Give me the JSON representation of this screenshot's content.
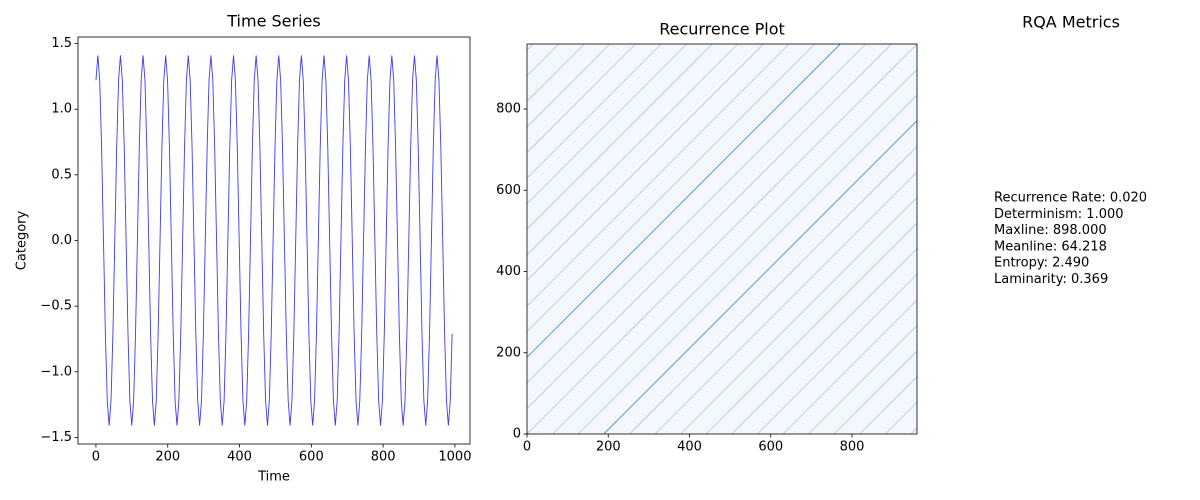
{
  "chart_data": [
    {
      "type": "line",
      "title": "Time Series",
      "x_label": "Time",
      "y_label": "Category",
      "color": "#3a3aff",
      "x": [
        0,
        5.25,
        10.5,
        15.75,
        21,
        26.25,
        31.5,
        36.75,
        42,
        47.25,
        52.5,
        57.75,
        63,
        68.25,
        73.5,
        78.75,
        84,
        89.25,
        94.5,
        99.75,
        105,
        110.25,
        115.5,
        120.75,
        126,
        131.25,
        136.5,
        141.75,
        147,
        152.25,
        157.5,
        162.75,
        168,
        173.25,
        178.5,
        183.75,
        189,
        194.25,
        199.5,
        204.75,
        210,
        215.25,
        220.5,
        225.75,
        231,
        236.25,
        241.5,
        246.75,
        252,
        257.25,
        262.5,
        267.75,
        273,
        278.25,
        283.5,
        288.75,
        294,
        299.25,
        304.5,
        309.75,
        315,
        320.25,
        325.5,
        330.75,
        336,
        341.25,
        346.5,
        351.75,
        357,
        362.25,
        367.5,
        372.75,
        378,
        383.25,
        388.5,
        393.75,
        399,
        404.25,
        409.5,
        414.75,
        420,
        425.25,
        430.5,
        435.75,
        441,
        446.25,
        451.5,
        456.75,
        462,
        467.25,
        472.5,
        477.75,
        483,
        488.25,
        493.5,
        498.75,
        504,
        509.25,
        514.5,
        519.75,
        525,
        530.25,
        535.5,
        540.75,
        546,
        551.25,
        556.5,
        561.75,
        567,
        572.25,
        577.5,
        582.75,
        588,
        593.25,
        598.5,
        603.75,
        609,
        614.25,
        619.5,
        624.75,
        630,
        635.25,
        640.5,
        645.75,
        651,
        656.25,
        661.5,
        666.75,
        672,
        677.25,
        682.5,
        687.75,
        693,
        698.25,
        703.5,
        708.75,
        714,
        719.25,
        724.5,
        729.75,
        735,
        740.25,
        745.5,
        750.75,
        756,
        761.25,
        766.5,
        771.75,
        777,
        782.25,
        787.5,
        792.75,
        798,
        803.25,
        808.5,
        813.75,
        819,
        824.25,
        829.5,
        834.75,
        840,
        845.25,
        850.5,
        855.75,
        861,
        866.25,
        871.5,
        876.75,
        882,
        887.25,
        892.5,
        897.75,
        903,
        908.25,
        913.5,
        918.75,
        924,
        929.25,
        934.5,
        939.75,
        945,
        950.25,
        955.5,
        960.75,
        966,
        971.25,
        976.5,
        981.75,
        987,
        992.25
      ],
      "values": [
        1.22,
        1.41,
        1.22,
        0.71,
        0,
        -0.71,
        -1.22,
        -1.41,
        -1.22,
        -0.71,
        0,
        0.71,
        1.22,
        1.41,
        1.22,
        0.71,
        0,
        -0.71,
        -1.22,
        -1.41,
        -1.22,
        -0.71,
        0,
        0.71,
        1.22,
        1.41,
        1.22,
        0.71,
        0,
        -0.71,
        -1.22,
        -1.41,
        -1.22,
        -0.71,
        0,
        0.71,
        1.22,
        1.41,
        1.22,
        0.71,
        0,
        -0.71,
        -1.22,
        -1.41,
        -1.22,
        -0.71,
        0,
        0.71,
        1.22,
        1.41,
        1.22,
        0.71,
        0,
        -0.71,
        -1.22,
        -1.41,
        -1.22,
        -0.71,
        0,
        0.71,
        1.22,
        1.41,
        1.22,
        0.71,
        0,
        -0.71,
        -1.22,
        -1.41,
        -1.22,
        -0.71,
        0,
        0.71,
        1.22,
        1.41,
        1.22,
        0.71,
        0,
        -0.71,
        -1.22,
        -1.41,
        -1.22,
        -0.71,
        0,
        0.71,
        1.22,
        1.41,
        1.22,
        0.71,
        0,
        -0.71,
        -1.22,
        -1.41,
        -1.22,
        -0.71,
        0,
        0.71,
        1.22,
        1.41,
        1.22,
        0.71,
        0,
        -0.71,
        -1.22,
        -1.41,
        -1.22,
        -0.71,
        0,
        0.71,
        1.22,
        1.41,
        1.22,
        0.71,
        0,
        -0.71,
        -1.22,
        -1.41,
        -1.22,
        -0.71,
        0,
        0.71,
        1.22,
        1.41,
        1.22,
        0.71,
        0,
        -0.71,
        -1.22,
        -1.41,
        -1.22,
        -0.71,
        0,
        0.71,
        1.22,
        1.41,
        1.22,
        0.71,
        0,
        -0.71,
        -1.22,
        -1.41,
        -1.22,
        -0.71,
        0,
        0.71,
        1.22,
        1.41,
        1.22,
        0.71,
        0,
        -0.71,
        -1.22,
        -1.41,
        -1.22,
        -0.71,
        0,
        0.71,
        1.22,
        1.41,
        1.22,
        0.71,
        0,
        -0.71,
        -1.22,
        -1.41,
        -1.22,
        -0.71,
        0,
        0.71,
        1.22,
        1.41,
        1.22,
        0.71,
        0,
        -0.71,
        -1.22,
        -1.41,
        -1.22,
        -0.71,
        0,
        0.71,
        1.22,
        1.41,
        1.22,
        0.71,
        0,
        -0.71,
        -1.22,
        -1.41,
        -1.22,
        -0.71
      ],
      "xlim": [
        -50,
        1042
      ],
      "xticks": [
        0,
        200,
        400,
        600,
        800,
        1000
      ],
      "ylim": [
        -1.55,
        1.55
      ],
      "yticks": [
        {
          "value": -1.5,
          "label": "−1.5"
        },
        {
          "value": -1.0,
          "label": "−1.0"
        },
        {
          "value": -0.5,
          "label": "−0.5"
        },
        {
          "value": 0,
          "label": "0.0"
        },
        0.5,
        {
          "value": 1.0,
          "label": "1.0"
        },
        1.5
      ]
    },
    {
      "type": "recurrence",
      "title": "Recurrence Plot",
      "background": "#f4f8fd",
      "line_color": "#9ecae1",
      "strong_color": "#3f8fd0",
      "offsets": [
        -945,
        -882,
        -819,
        -756,
        -693,
        -630,
        -567,
        -504,
        -441,
        -378,
        -315,
        -252,
        -126,
        -63,
        0,
        63,
        126,
        252,
        315,
        378,
        441,
        504,
        567,
        630,
        693,
        756,
        819,
        882,
        945
      ],
      "strong_offsets": [
        189,
        -189
      ],
      "xlim": [
        0,
        960
      ],
      "xticks": [
        0,
        200,
        400,
        600,
        800
      ],
      "ylim": [
        0,
        960
      ],
      "yticks": [
        0,
        200,
        400,
        600,
        800
      ]
    },
    {
      "type": "text",
      "title": "RQA Metrics",
      "lines": [
        "Recurrence Rate: 0.020",
        "Determinism: 1.000",
        "Maxline: 898.000",
        "Meanline: 64.218",
        "Entropy: 2.490",
        "Laminarity: 0.369"
      ]
    }
  ]
}
